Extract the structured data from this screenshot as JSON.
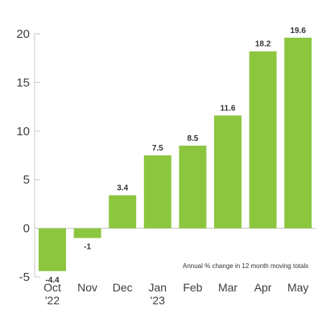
{
  "chart_data": {
    "type": "bar",
    "categories": [
      "Oct\n'22",
      "Nov",
      "Dec",
      "Jan\n'23",
      "Feb",
      "Mar",
      "Apr",
      "May"
    ],
    "values": [
      -4.4,
      -1,
      3.4,
      7.5,
      8.5,
      11.6,
      18.2,
      19.6
    ],
    "data_labels": [
      "-4.4",
      "-1",
      "3.4",
      "7.5",
      "8.5",
      "11.6",
      "18.2",
      "19.6"
    ],
    "y_ticks": [
      -5,
      0,
      5,
      10,
      15,
      20
    ],
    "y_tick_labels": [
      "-5",
      "0",
      "5",
      "10",
      "15",
      "20"
    ],
    "ylim": [
      -5,
      20
    ],
    "annotation": "Annual % change in 12 month moving totals",
    "bar_color": "#8cc63f",
    "grid": false,
    "legend": "none"
  }
}
